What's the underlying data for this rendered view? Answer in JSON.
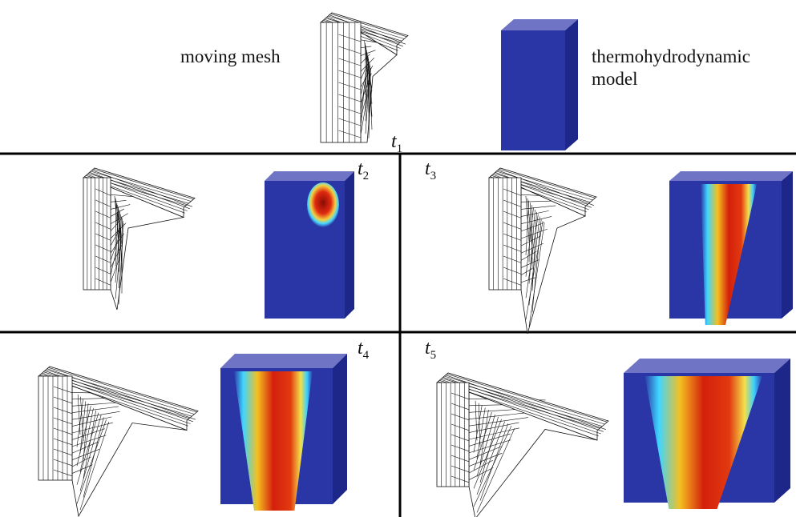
{
  "labels": {
    "left": "moving mesh",
    "right": [
      "thermohydrodynamic",
      "model"
    ]
  },
  "times": [
    {
      "symbol": "t",
      "subscript": "1"
    },
    {
      "symbol": "t",
      "subscript": "2"
    },
    {
      "symbol": "t",
      "subscript": "3"
    },
    {
      "symbol": "t",
      "subscript": "4"
    },
    {
      "symbol": "t",
      "subscript": "5"
    }
  ]
}
